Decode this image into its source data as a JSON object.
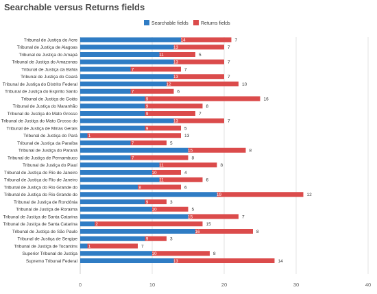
{
  "chart_data": {
    "type": "bar",
    "orientation": "horizontal",
    "stacked": true,
    "title": "Searchable versus Returns fields",
    "legend_position": "top",
    "grid": true,
    "xlim": [
      0,
      40
    ],
    "xticks": [
      "0",
      "10",
      "20",
      "30",
      "40"
    ],
    "categories": [
      "Tribunal de Justiça do Acre",
      "Tribunal de Justiça de Alagoas",
      "Tribunal de Justiça do Amapá",
      "Tribunal de Justiça do Amazonas",
      "Tribunal de Justiça da Bahia",
      "Tribunal de Justiça do Ceará",
      "Tribunal de Justiça do Distrito Federal",
      "Tribunal de Justiça do Espírito Santo",
      "Tribunal de Justiça de Goiás",
      "Tribunal de Justiça do Maranhão",
      "Tribunal de Justiça do Mato Grosso",
      "Tribunal de Justiça do Mato Grosso do",
      "Tribunal de Justiça de Minas Gerais",
      "Tribunal de Justiça do Pará",
      "Tribunal de Justiça da Paraíba",
      "Tribunal de Justiça do Paraná",
      "Tribunal de Justiça de Pernambuco",
      "Tribunal de Justiça do Piauí",
      "Tribunal de Justiça do Rio de Janeiro",
      "Tribunal de Justiça do Rio de Janeiro",
      "Tribunal de Justiça do Rio Grande do",
      "Tribunal de Justiça do Rio Grande do",
      "Tribunal de Justiça de Rondônia",
      "Tribunal de Justiça de Roraima",
      "Tribunal de Justiça de Santa Catarina",
      "Tribunal de Justiça de Santa Catarina",
      "Tribunal de Justiça de São Paulo",
      "Tribunal de Justiça de Sergipe",
      "Tribunal de Justiça de Tocantins",
      "Superior Tribunal de Justiça",
      "Supremo Tribunal Federal"
    ],
    "series": [
      {
        "name": "Searchable fields",
        "color": "#2f7cc4",
        "values": [
          14,
          13,
          11,
          13,
          7,
          13,
          12,
          7,
          9,
          9,
          9,
          13,
          9,
          1,
          7,
          15,
          7,
          11,
          10,
          11,
          8,
          19,
          9,
          10,
          15,
          2,
          16,
          9,
          1,
          10,
          13
        ]
      },
      {
        "name": "Returns fields",
        "color": "#db4b4b",
        "values": [
          7,
          7,
          5,
          7,
          7,
          7,
          10,
          6,
          16,
          8,
          7,
          7,
          5,
          13,
          5,
          8,
          8,
          8,
          4,
          6,
          6,
          12,
          3,
          5,
          7,
          15,
          8,
          3,
          7,
          8,
          14
        ]
      }
    ]
  }
}
